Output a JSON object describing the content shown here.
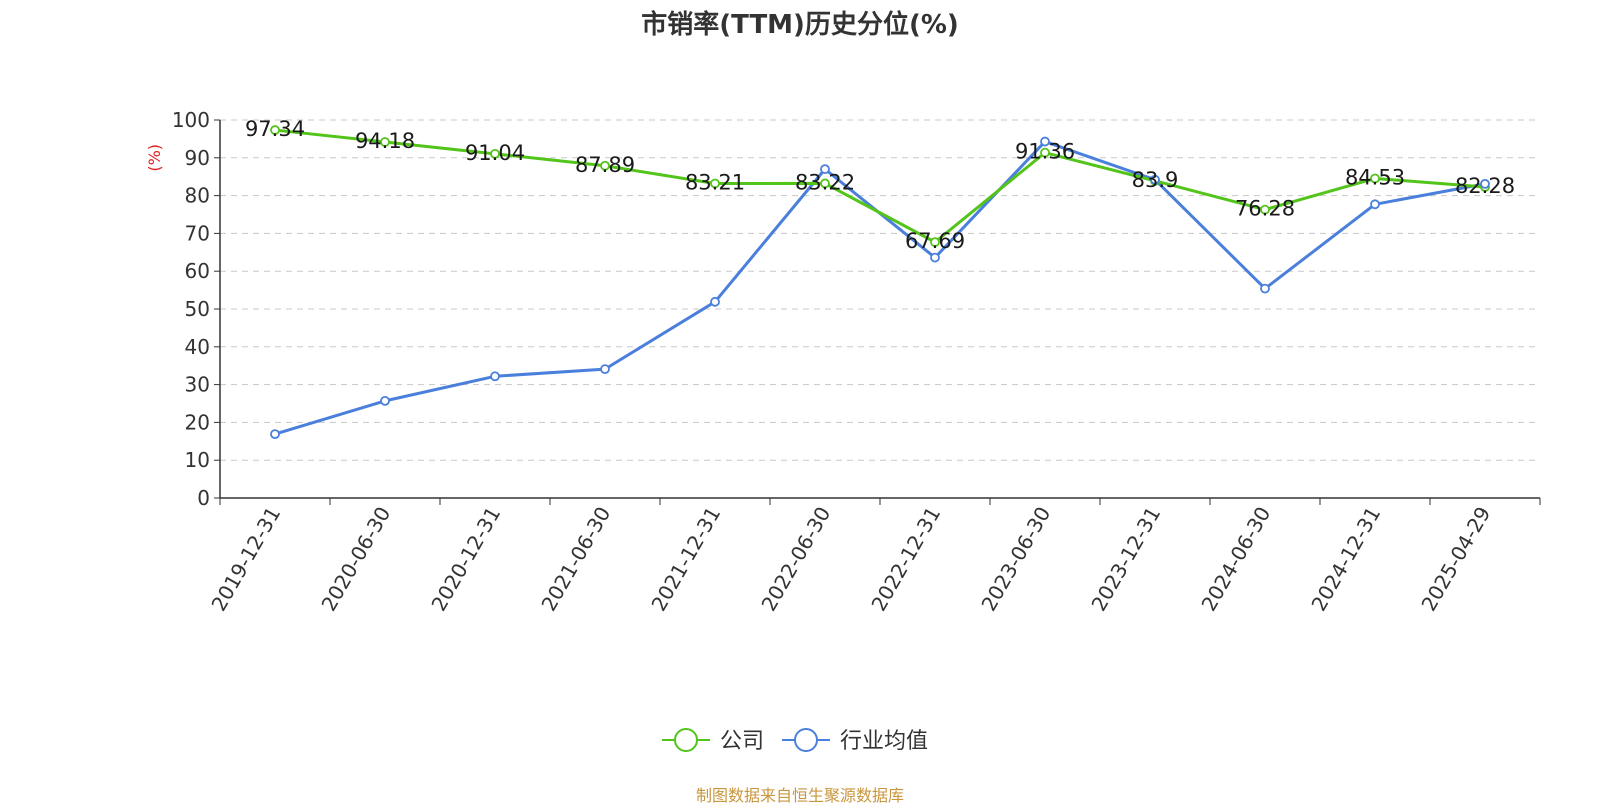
{
  "chart_data": {
    "type": "line",
    "title": "市销率(TTM)历史分位(%)",
    "ylabel": "(%)",
    "xlabel": "",
    "ylim": [
      0,
      100
    ],
    "yticks": [
      0,
      10,
      20,
      30,
      40,
      50,
      60,
      70,
      80,
      90,
      100
    ],
    "grid": true,
    "legend_position": "bottom",
    "categories": [
      "2019-12-31",
      "2020-06-30",
      "2020-12-31",
      "2021-06-30",
      "2021-12-31",
      "2022-06-30",
      "2022-12-31",
      "2023-06-30",
      "2023-12-31",
      "2024-06-30",
      "2024-12-31",
      "2025-04-29"
    ],
    "series": [
      {
        "name": "公司",
        "color": "#52c41a",
        "values": [
          97.34,
          94.18,
          91.04,
          87.89,
          83.21,
          83.22,
          67.69,
          91.36,
          83.9,
          76.28,
          84.53,
          82.28
        ],
        "labels": [
          "97.34",
          "94.18",
          "91.04",
          "87.89",
          "83.21",
          "83.22",
          "67.69",
          "91.36",
          "83.9",
          "76.28",
          "84.53",
          "82.28"
        ]
      },
      {
        "name": "行业均值",
        "color": "#4a7fdc",
        "values": [
          16.9,
          25.7,
          32.2,
          34.1,
          51.9,
          87.0,
          63.6,
          94.3,
          84.2,
          55.4,
          77.7,
          83.1
        ]
      }
    ]
  },
  "source_note": "制图数据来自恒生聚源数据库"
}
